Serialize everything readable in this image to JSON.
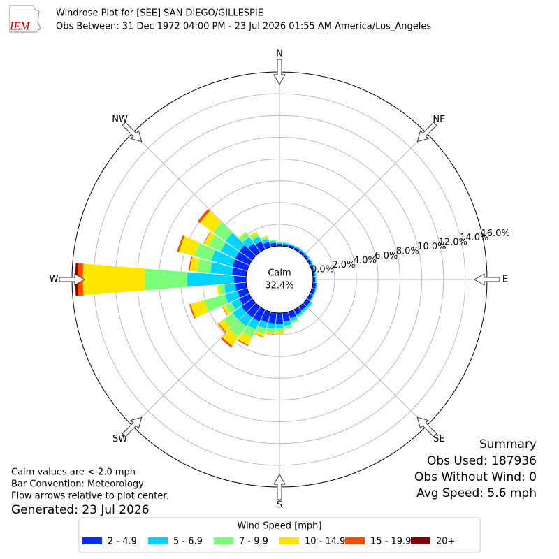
{
  "chart_data": {
    "type": "windrose",
    "logo_text": "IEM",
    "title": "Windrose Plot for [SEE] SAN DIEGO/GILLESPIE",
    "subtitle": "Obs Between: 31 Dec 1972 04:00 PM - 23 Jul 2026 01:55 AM America/Los_Angeles",
    "calm_label": "Calm",
    "calm_value": 32.4,
    "calm_value_label": "32.4%",
    "directions": [
      0,
      10,
      20,
      30,
      40,
      50,
      60,
      70,
      80,
      90,
      100,
      110,
      120,
      130,
      140,
      150,
      160,
      170,
      180,
      190,
      200,
      210,
      220,
      230,
      240,
      250,
      260,
      270,
      280,
      290,
      300,
      310,
      320,
      330,
      340,
      350
    ],
    "xticks": [
      {
        "value": 0,
        "label": "N"
      },
      {
        "value": 45,
        "label": "NE"
      },
      {
        "value": 90,
        "label": "E"
      },
      {
        "value": 135,
        "label": "SE"
      },
      {
        "value": 180,
        "label": "S"
      },
      {
        "value": 225,
        "label": "SW"
      },
      {
        "value": 270,
        "label": "W"
      },
      {
        "value": 315,
        "label": "NW"
      }
    ],
    "rlim": [
      0,
      16
    ],
    "rticks": [
      {
        "value": 0,
        "label": "0.0%"
      },
      {
        "value": 2,
        "label": "2.0%"
      },
      {
        "value": 4,
        "label": "4.0%"
      },
      {
        "value": 6,
        "label": "6.0%"
      },
      {
        "value": 8,
        "label": "8.0%"
      },
      {
        "value": 10,
        "label": "10.0%"
      },
      {
        "value": 12,
        "label": "12.0%"
      },
      {
        "value": 14,
        "label": "14.0%"
      },
      {
        "value": 16,
        "label": "16.0%"
      }
    ],
    "grid": true,
    "legend_title": "Wind Speed [mph]",
    "series": [
      {
        "name": "2 - 4.9",
        "color": "#0028ff",
        "values": [
          0.2,
          0.2,
          0.2,
          0.2,
          0.2,
          0.2,
          0.2,
          0.2,
          0.2,
          0.2,
          0.3,
          0.3,
          0.3,
          0.4,
          0.4,
          0.5,
          0.6,
          0.8,
          1.0,
          1.0,
          1.0,
          1.2,
          1.2,
          1.2,
          1.0,
          0.9,
          1.0,
          1.1,
          1.3,
          1.4,
          1.4,
          1.4,
          1.0,
          0.8,
          0.5,
          0.3
        ]
      },
      {
        "name": "5 - 6.9",
        "color": "#00d4ff",
        "values": [
          0.1,
          0.1,
          0.1,
          0.1,
          0.1,
          0.1,
          0.1,
          0.1,
          0.1,
          0.1,
          0.1,
          0.1,
          0.1,
          0.2,
          0.2,
          0.2,
          0.3,
          0.4,
          0.4,
          0.5,
          0.6,
          0.8,
          1.0,
          1.0,
          0.8,
          1.2,
          1.0,
          4.3,
          2.0,
          2.0,
          1.5,
          1.6,
          0.7,
          0.5,
          0.3,
          0.2
        ]
      },
      {
        "name": "7 - 9.9",
        "color": "#7cff79",
        "values": [
          0.05,
          0.05,
          0.05,
          0.05,
          0.05,
          0.05,
          0.05,
          0.05,
          0.05,
          0.05,
          0.05,
          0.05,
          0.05,
          0.1,
          0.1,
          0.1,
          0.2,
          0.3,
          0.3,
          0.3,
          0.5,
          0.8,
          1.2,
          1.0,
          0.6,
          2.0,
          0.5,
          3.9,
          1.2,
          1.6,
          1.2,
          1.4,
          0.5,
          0.3,
          0.2,
          0.1
        ]
      },
      {
        "name": "10 - 14.9",
        "color": "#ffe600",
        "values": [
          0,
          0,
          0,
          0,
          0,
          0,
          0,
          0,
          0,
          0,
          0,
          0,
          0,
          0,
          0,
          0,
          0,
          0,
          0.2,
          0.2,
          0.3,
          0.8,
          1.0,
          0.6,
          0.3,
          1.3,
          0.2,
          5.7,
          0.7,
          1.5,
          0.5,
          1.5,
          0.1,
          0.2,
          0.1,
          0
        ]
      },
      {
        "name": "15 - 19.9",
        "color": "#ff4a00",
        "values": [
          0,
          0,
          0,
          0,
          0,
          0,
          0,
          0,
          0,
          0,
          0,
          0,
          0,
          0,
          0,
          0,
          0,
          0,
          0.02,
          0.02,
          0.05,
          0.1,
          0.15,
          0.1,
          0.05,
          0.1,
          0,
          0.5,
          0.1,
          0.15,
          0.05,
          0.2,
          0,
          0,
          0,
          0
        ]
      },
      {
        "name": "20+",
        "color": "#7f0000",
        "values": [
          0,
          0,
          0,
          0,
          0,
          0,
          0,
          0,
          0,
          0,
          0,
          0,
          0,
          0,
          0,
          0,
          0,
          0,
          0,
          0,
          0,
          0,
          0.02,
          0,
          0,
          0.02,
          0,
          0.2,
          0,
          0.02,
          0,
          0.03,
          0,
          0,
          0,
          0
        ]
      }
    ],
    "summary_title": "Summary",
    "summary_lines": [
      "Obs Used: 187936",
      "Obs Without Wind: 0",
      "Avg Speed: 5.6 mph"
    ],
    "notes": [
      "Calm values are < 2.0 mph",
      "Bar Convention: Meteorology",
      "Flow arrows relative to plot center."
    ],
    "generated": "Generated: 23 Jul 2026"
  }
}
